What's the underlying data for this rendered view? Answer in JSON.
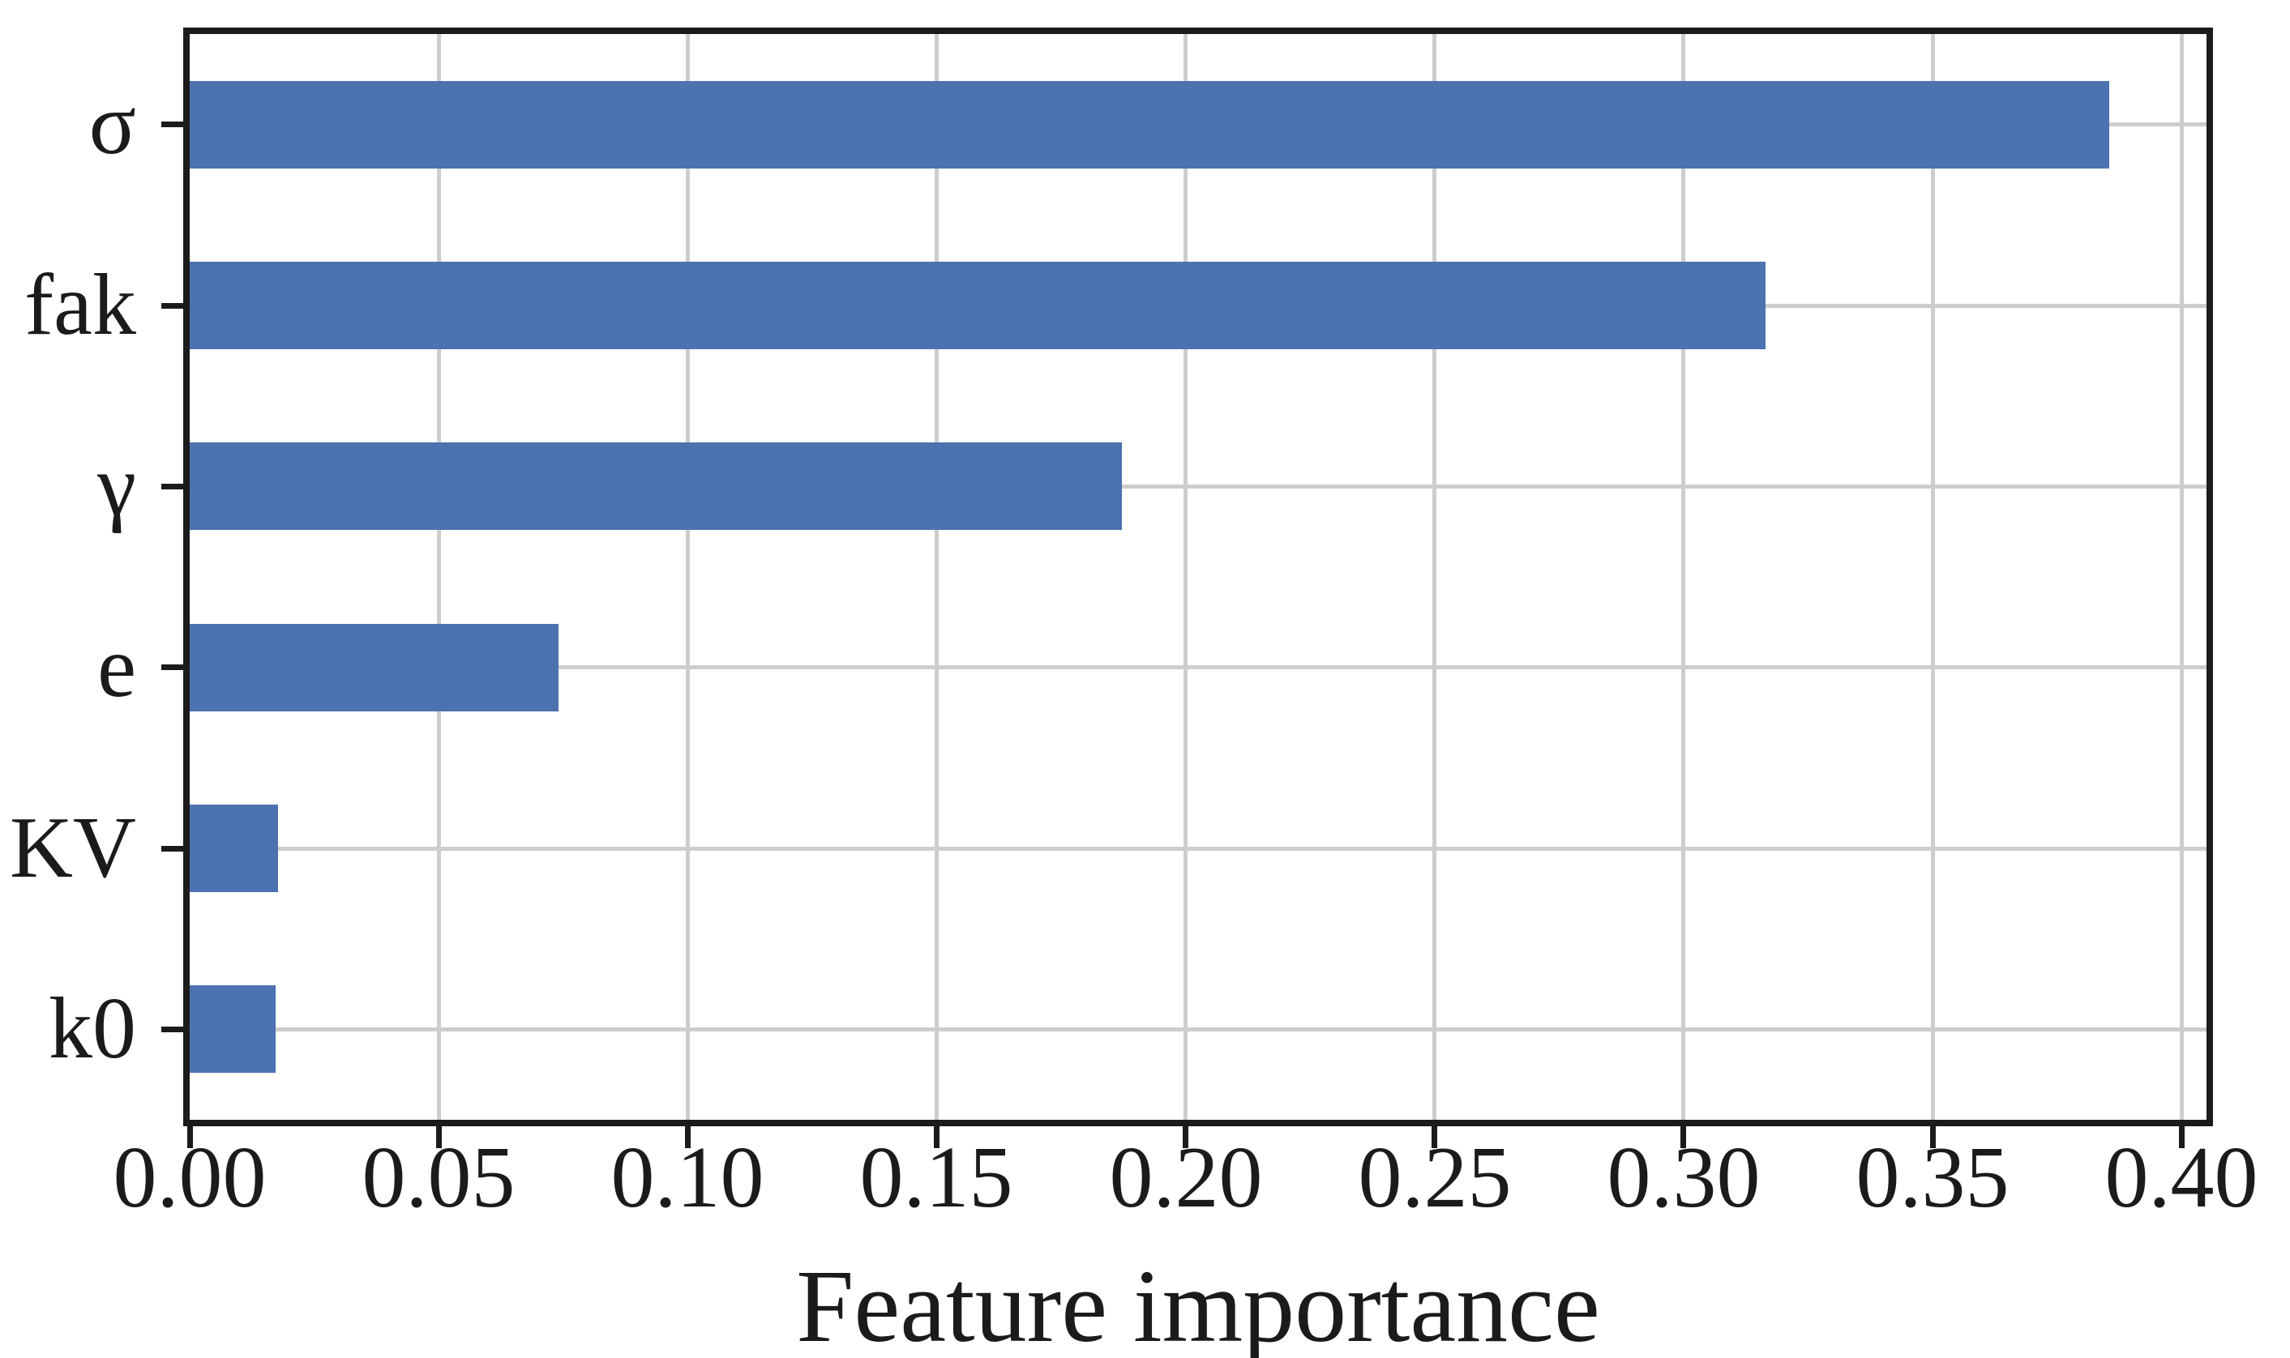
{
  "chart_data": {
    "type": "bar",
    "orientation": "horizontal",
    "title": "",
    "xlabel": "Feature importance",
    "ylabel": "",
    "categories": [
      "σ",
      "fak",
      "γ",
      "e",
      "KV",
      "k0"
    ],
    "values": [
      0.3855,
      0.3165,
      0.1872,
      0.0741,
      0.0177,
      0.0172
    ],
    "xlim": [
      0,
      0.405
    ],
    "xticks": [
      0.0,
      0.05,
      0.1,
      0.15,
      0.2,
      0.25,
      0.3,
      0.35,
      0.4
    ],
    "xtick_labels": [
      "0.00",
      "0.05",
      "0.10",
      "0.15",
      "0.20",
      "0.25",
      "0.30",
      "0.35",
      "0.40"
    ],
    "grid": true,
    "legend": "none",
    "bar_color": "#4c72b0",
    "grid_color": "#cdcdcd",
    "axis_color": "#1b1b1b",
    "text_color": "#1b1b1b",
    "background_color": "#ffffff"
  }
}
